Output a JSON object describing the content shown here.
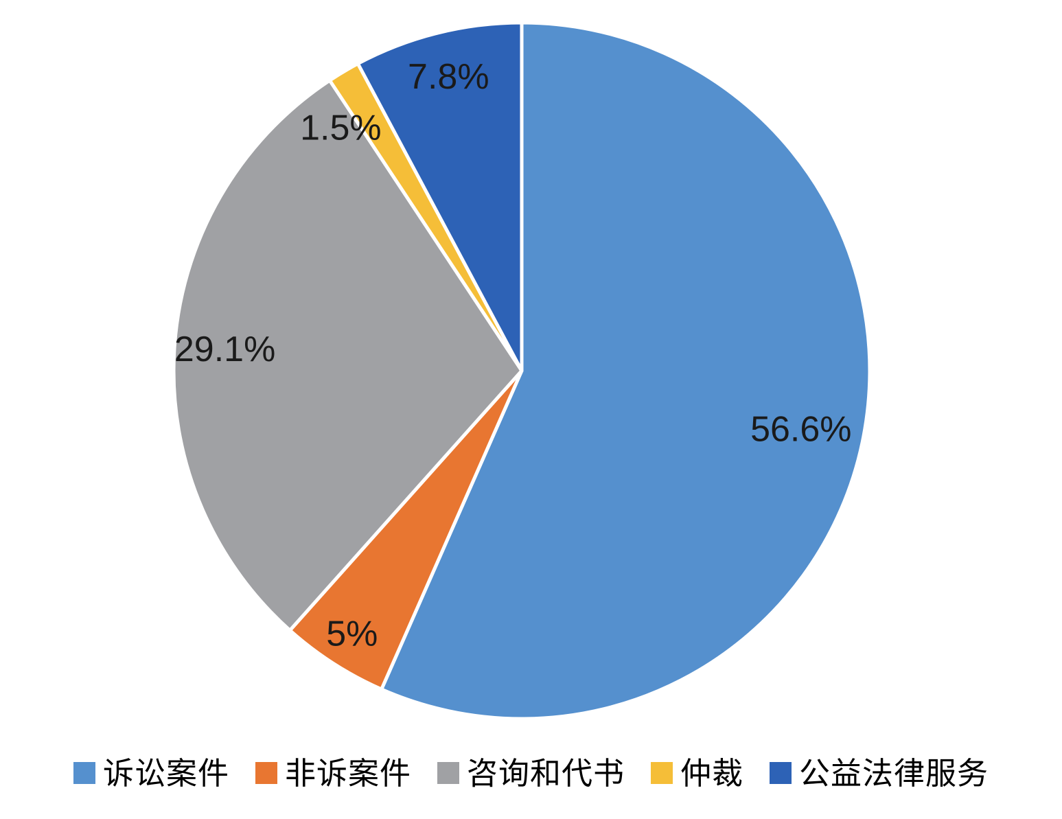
{
  "chart_data": {
    "type": "pie",
    "title": "",
    "units": "%",
    "direction": "clockwise",
    "start_angle_deg": 0,
    "legend_position": "bottom",
    "background_color": "#FFFFFF",
    "slice_border_color": "#FFFFFF",
    "label_text_color": "#1A1A1A",
    "series": [
      {
        "label": "诉讼案件",
        "value": 56.6,
        "pct_label": "56.6%",
        "color": "#5590CE"
      },
      {
        "label": "非诉案件",
        "value": 5,
        "pct_label": "5%",
        "color": "#E87631"
      },
      {
        "label": "咨询和代书",
        "value": 29.1,
        "pct_label": "29.1%",
        "color": "#A0A1A4"
      },
      {
        "label": "仲裁",
        "value": 1.5,
        "pct_label": "1.5%",
        "color": "#F5BE38"
      },
      {
        "label": "公益法律服务",
        "value": 7.8,
        "pct_label": "7.8%",
        "color": "#2D62B6"
      }
    ],
    "label_layout": [
      {
        "r_frac": 0.82,
        "angle_deg": 101.9
      },
      {
        "r_frac": 0.9,
        "angle_deg": 212.8
      },
      {
        "r_frac": 0.855,
        "angle_deg": 274.1
      },
      {
        "r_frac": 0.87,
        "angle_deg": 323.3
      },
      {
        "r_frac": 0.87,
        "angle_deg": 346.0
      }
    ]
  }
}
